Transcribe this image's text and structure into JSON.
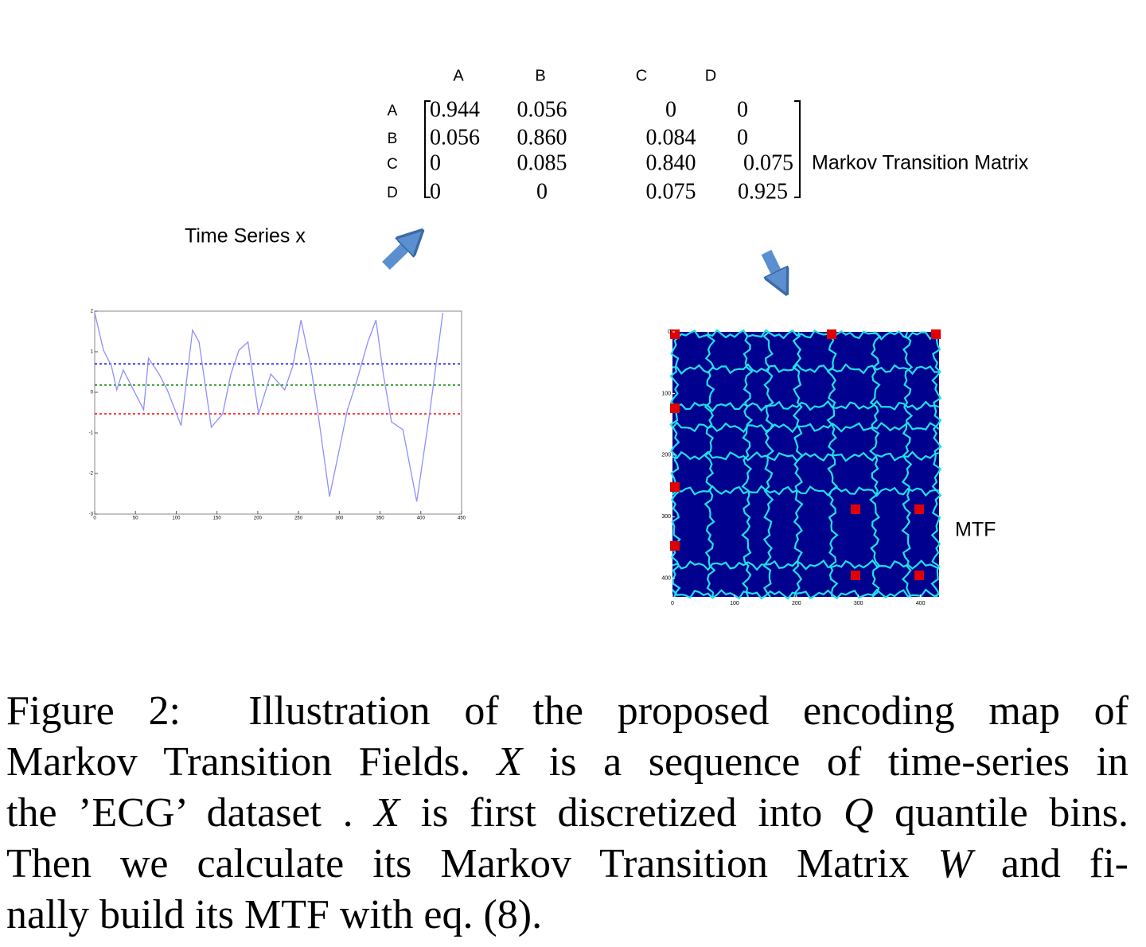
{
  "chart_data": [
    {
      "type": "line",
      "title": "Time Series x",
      "x": [
        0,
        10.7,
        20.5,
        27,
        35,
        45,
        60,
        66,
        79,
        89,
        106,
        120,
        128,
        143,
        157,
        167,
        177,
        188,
        201,
        216,
        233,
        243,
        253,
        265,
        274,
        288,
        299,
        310,
        321,
        335,
        345,
        354,
        364,
        378,
        395,
        411,
        427
      ],
      "series": [
        {
          "color": "#8f8fff",
          "values": [
            1.96,
            1.04,
            0.65,
            0.06,
            0.55,
            0.16,
            -0.43,
            0.84,
            0.45,
            0.06,
            -0.82,
            1.53,
            1.24,
            -0.86,
            -0.53,
            0.45,
            1.04,
            1.24,
            -0.53,
            0.45,
            0.06,
            0.65,
            1.78,
            0.65,
            -0.53,
            -2.57,
            -1.51,
            -0.43,
            0.25,
            1.24,
            1.78,
            0.45,
            -0.73,
            -0.92,
            -2.69,
            -0.49,
            1.96
          ]
        }
      ],
      "hlines": [
        {
          "value": 0.7,
          "color": "#0000ff"
        },
        {
          "value": 0.18,
          "color": "#008000"
        },
        {
          "value": -0.53,
          "color": "#ff0000"
        }
      ],
      "xlim": [
        0,
        450
      ],
      "ylim": [
        -3,
        2
      ],
      "xticks": [
        0,
        50,
        100,
        150,
        200,
        250,
        300,
        350,
        400,
        450
      ],
      "yticks": [
        -3,
        -2,
        -1,
        0,
        1,
        2
      ]
    },
    {
      "type": "heatmap",
      "title": "MTF",
      "xlim": [
        0,
        430
      ],
      "ylim": [
        0,
        430
      ],
      "xticks": [
        0,
        100,
        200,
        300,
        400
      ],
      "yticks": [
        0,
        100,
        200,
        300,
        400
      ]
    }
  ],
  "matrix": {
    "label": "Markov Transition Matrix",
    "col_labels": [
      "A",
      "B",
      "C",
      "D"
    ],
    "row_labels": [
      "A",
      "B",
      "C",
      "D"
    ],
    "rows": [
      [
        "0.944",
        "0.056",
        "0",
        "0"
      ],
      [
        "0.056",
        "0.860",
        "0.084",
        "0"
      ],
      [
        "0",
        "0.085",
        "0.840",
        "0.075"
      ],
      [
        "0",
        "0",
        "0.075",
        "0.925"
      ]
    ]
  },
  "caption": {
    "lines": [
      [
        {
          "text": "Figure 2:  Illustration of the proposed encoding map of"
        }
      ],
      [
        {
          "text": "Markov Transition Fields. "
        },
        {
          "text": "X",
          "italic": true
        },
        {
          "text": " is a sequence of time-series in"
        }
      ],
      [
        {
          "text": "the ’ECG’ dataset . "
        },
        {
          "text": "X",
          "italic": true
        },
        {
          "text": " is first discretized into "
        },
        {
          "text": "Q",
          "italic": true
        },
        {
          "text": " quantile bins."
        }
      ],
      [
        {
          "text": "Then we calculate its Markov Transition Matrix "
        },
        {
          "text": "W",
          "italic": true
        },
        {
          "text": " and fi-"
        }
      ],
      [
        {
          "text": "nally build its MTF with eq. (8)."
        }
      ]
    ]
  }
}
